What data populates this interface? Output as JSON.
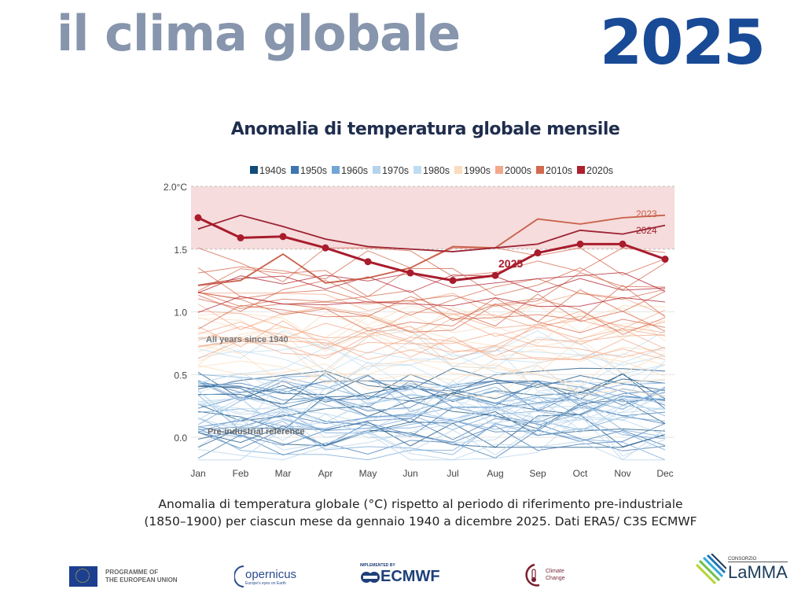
{
  "header": {
    "title": "il clima globale",
    "year": "2025"
  },
  "chart_title": "Anomalia di temperatura globale mensile",
  "caption": {
    "line1": "Anomalia di temperatura globale (°C) rispetto al periodo di riferimento pre-industriale",
    "line2": "(1850–1900) per ciascun mese da gennaio 1940 a dicembre 2025. Dati ERA5/ C3S ECMWF"
  },
  "chart_data": {
    "type": "line",
    "title": "Anomalia di temperatura globale mensile",
    "xlabel": "",
    "ylabel": "°C",
    "categories": [
      "Jan",
      "Feb",
      "Mar",
      "Apr",
      "May",
      "Jun",
      "Jul",
      "Aug",
      "Sep",
      "Oct",
      "Nov",
      "Dec"
    ],
    "ylim": [
      -0.3,
      2.0
    ],
    "yticks": [
      {
        "value": 2.0,
        "label": "2.0°C"
      },
      {
        "value": 1.5,
        "label": "1.5"
      },
      {
        "value": 1.0,
        "label": "1.0"
      },
      {
        "value": 0.5,
        "label": "0.5"
      },
      {
        "value": 0.0,
        "label": "0.0"
      }
    ],
    "shaded_band": {
      "from": 1.5,
      "to": 2.0,
      "color": "#f6dcdc"
    },
    "legend": [
      {
        "label": "1940s",
        "color": "#0f4c7c"
      },
      {
        "label": "1950s",
        "color": "#3d76b0"
      },
      {
        "label": "1960s",
        "color": "#73a6d6"
      },
      {
        "label": "1970s",
        "color": "#b5d3ec"
      },
      {
        "label": "1980s",
        "color": "#c0dcef"
      },
      {
        "label": "1990s",
        "color": "#fbdcbc"
      },
      {
        "label": "2000s",
        "color": "#f2a98a"
      },
      {
        "label": "2010s",
        "color": "#d46a4e"
      },
      {
        "label": "2020s",
        "color": "#b01f2e"
      }
    ],
    "legend_position": "top",
    "annotations": [
      {
        "text": "All years since 1940",
        "value": 0.78,
        "month": "Jan"
      },
      {
        "text": "Pre-industrial reference",
        "value": 0.04,
        "month": "Jan"
      },
      {
        "text": "2023",
        "month": "Dec"
      },
      {
        "text": "2024",
        "month": "Dec"
      },
      {
        "text": "2025",
        "month": "Aug"
      }
    ],
    "highlighted_series": [
      {
        "name": "2025",
        "color": "#a81c2c",
        "markers": true,
        "values": [
          1.75,
          1.59,
          1.6,
          1.51,
          1.4,
          1.31,
          1.25,
          1.29,
          1.47,
          1.54,
          1.54,
          1.42
        ]
      },
      {
        "name": "2024",
        "color": "#9c2333",
        "markers": false,
        "values": [
          1.66,
          1.77,
          1.68,
          1.58,
          1.52,
          1.5,
          1.48,
          1.51,
          1.54,
          1.65,
          1.62,
          1.69
        ]
      },
      {
        "name": "2023",
        "color": "#c8604a",
        "markers": false,
        "values": [
          1.21,
          1.25,
          1.46,
          1.23,
          1.27,
          1.35,
          1.52,
          1.51,
          1.74,
          1.7,
          1.75,
          1.77
        ]
      }
    ],
    "decade_series_bands": [
      {
        "decade": "1940s",
        "range": [
          0.0,
          0.5
        ]
      },
      {
        "decade": "1950s",
        "range": [
          -0.1,
          0.4
        ]
      },
      {
        "decade": "1960s",
        "range": [
          -0.1,
          0.45
        ]
      },
      {
        "decade": "1970s",
        "range": [
          -0.1,
          0.6
        ]
      },
      {
        "decade": "1980s",
        "range": [
          0.2,
          0.8
        ]
      },
      {
        "decade": "1990s",
        "range": [
          0.4,
          1.0
        ]
      },
      {
        "decade": "2000s",
        "range": [
          0.7,
          1.1
        ]
      },
      {
        "decade": "2010s",
        "range": [
          0.9,
          1.46
        ]
      },
      {
        "decade": "2020s",
        "range": [
          1.0,
          1.3
        ]
      }
    ],
    "grid": true
  },
  "logos": {
    "eu": "PROGRAMME OF\nTHE EUROPEAN UNION",
    "eu_line1": "PROGRAMME OF",
    "eu_line2": "THE EUROPEAN UNION",
    "copernicus": "opernicus",
    "copernicus_sub": "Europe's eyes on Earth",
    "ecmwf_sub": "IMPLEMENTED BY",
    "ecmwf": "ECMWF",
    "climate_line1": "Climate",
    "climate_line2": "Change",
    "lamma_sub": "CONSORZIO",
    "lamma": "LaMMA"
  }
}
